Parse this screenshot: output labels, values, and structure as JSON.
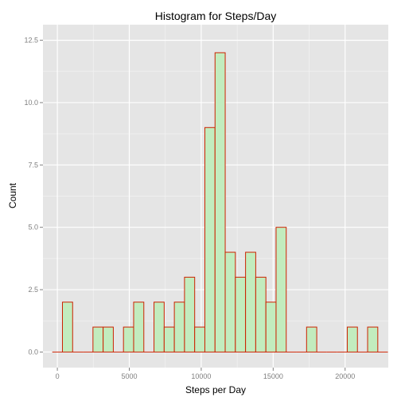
{
  "chart_data": {
    "type": "bar",
    "title": "Histogram for Steps/Day",
    "xlabel": "Steps per Day",
    "ylabel": "Count",
    "xlim": [
      -1000,
      23000
    ],
    "ylim": [
      0,
      12.5
    ],
    "x_ticks": [
      0,
      5000,
      10000,
      15000,
      20000
    ],
    "x_tick_labels": [
      "0",
      "5000",
      "10000",
      "15000",
      "20000"
    ],
    "y_ticks": [
      0,
      2.5,
      5,
      7.5,
      10,
      12.5
    ],
    "y_tick_labels": [
      "0.0",
      "2.5",
      "5.0",
      "7.5",
      "10.0",
      "12.5"
    ],
    "bin_width": 707,
    "bins": [
      {
        "x0": -354,
        "x1": 354,
        "count": 0
      },
      {
        "x0": 354,
        "x1": 1061,
        "count": 2
      },
      {
        "x0": 1061,
        "x1": 1768,
        "count": 0
      },
      {
        "x0": 1768,
        "x1": 2475,
        "count": 0
      },
      {
        "x0": 2475,
        "x1": 3182,
        "count": 1
      },
      {
        "x0": 3182,
        "x1": 3889,
        "count": 1
      },
      {
        "x0": 3889,
        "x1": 4596,
        "count": 0
      },
      {
        "x0": 4596,
        "x1": 5303,
        "count": 1
      },
      {
        "x0": 5303,
        "x1": 6010,
        "count": 2
      },
      {
        "x0": 6010,
        "x1": 6717,
        "count": 0
      },
      {
        "x0": 6717,
        "x1": 7424,
        "count": 2
      },
      {
        "x0": 7424,
        "x1": 8131,
        "count": 1
      },
      {
        "x0": 8131,
        "x1": 8838,
        "count": 2
      },
      {
        "x0": 8838,
        "x1": 9545,
        "count": 3
      },
      {
        "x0": 9545,
        "x1": 10252,
        "count": 1
      },
      {
        "x0": 10252,
        "x1": 10959,
        "count": 9
      },
      {
        "x0": 10959,
        "x1": 11666,
        "count": 12
      },
      {
        "x0": 11666,
        "x1": 12373,
        "count": 4
      },
      {
        "x0": 12373,
        "x1": 13080,
        "count": 3
      },
      {
        "x0": 13080,
        "x1": 13787,
        "count": 4
      },
      {
        "x0": 13787,
        "x1": 14494,
        "count": 3
      },
      {
        "x0": 14494,
        "x1": 15201,
        "count": 2
      },
      {
        "x0": 15201,
        "x1": 15908,
        "count": 5
      },
      {
        "x0": 15908,
        "x1": 16615,
        "count": 0
      },
      {
        "x0": 16615,
        "x1": 17322,
        "count": 0
      },
      {
        "x0": 17322,
        "x1": 18029,
        "count": 1
      },
      {
        "x0": 18029,
        "x1": 18736,
        "count": 0
      },
      {
        "x0": 18736,
        "x1": 19443,
        "count": 0
      },
      {
        "x0": 19443,
        "x1": 20150,
        "count": 0
      },
      {
        "x0": 20150,
        "x1": 20857,
        "count": 1
      },
      {
        "x0": 20857,
        "x1": 21564,
        "count": 0
      },
      {
        "x0": 21564,
        "x1": 22271,
        "count": 1
      },
      {
        "x0": 22271,
        "x1": 22978,
        "count": 0
      }
    ],
    "grid": true,
    "legend": "none",
    "colors": {
      "panel_background": "#e5e5e5",
      "grid_major": "#ffffff",
      "grid_minor": "#f2f2f2",
      "bar_fill": "#c2ecbe",
      "bar_outline": "#cc2200"
    }
  }
}
